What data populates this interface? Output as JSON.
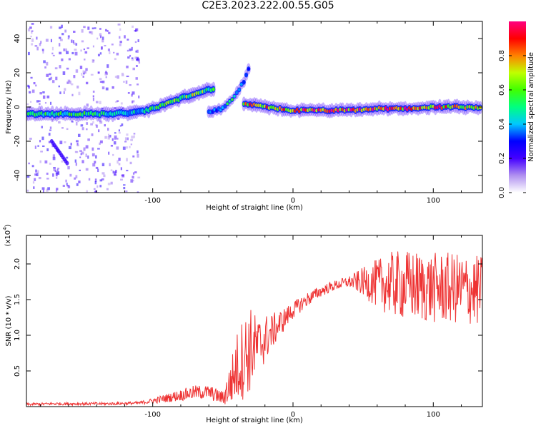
{
  "page_title": "C2E3.2023.222.00.55.G05",
  "chart_data": [
    {
      "type": "heatmap",
      "name": "spectrogram",
      "xlabel": "Height of straight line (km)",
      "ylabel": "Frequency (Hz)",
      "xlim": [
        -190,
        135
      ],
      "ylim": [
        -50,
        50
      ],
      "xticks": [
        -100,
        0,
        100
      ],
      "xtick_labels": [
        "-100",
        "0",
        "100"
      ],
      "yticks": [
        -40,
        -20,
        0,
        20,
        40
      ],
      "ytick_labels": [
        "-40",
        "-20",
        "0",
        "20",
        "40"
      ],
      "colorbar": {
        "label": "Normalized spectral amplitude",
        "range": [
          0,
          1
        ],
        "ticks": [
          0.0,
          0.2,
          0.4,
          0.6,
          0.8
        ],
        "tick_labels": [
          "0.0",
          "0.2",
          "0.4",
          "0.6",
          "0.8"
        ],
        "colormap": [
          "#ffffff",
          "#b090f0",
          "#4400ff",
          "#0000ff",
          "#00c8ff",
          "#00ff80",
          "#40ff00",
          "#c0ff00",
          "#ff8000",
          "#ff0000",
          "#ff0080"
        ]
      },
      "main_trace": [
        {
          "x": -190,
          "y": -4,
          "amp": 0.45
        },
        {
          "x": -170,
          "y": -4,
          "amp": 0.5
        },
        {
          "x": -150,
          "y": -4,
          "amp": 0.5
        },
        {
          "x": -130,
          "y": -4,
          "amp": 0.45
        },
        {
          "x": -110,
          "y": -3,
          "amp": 0.45
        },
        {
          "x": -100,
          "y": -1,
          "amp": 0.5
        },
        {
          "x": -90,
          "y": 2,
          "amp": 0.55
        },
        {
          "x": -80,
          "y": 5,
          "amp": 0.6
        },
        {
          "x": -70,
          "y": 8,
          "amp": 0.6
        },
        {
          "x": -60,
          "y": 10,
          "amp": 0.55
        },
        {
          "x": -55,
          "y": 11,
          "amp": 0.5
        }
      ],
      "branch_trace": [
        {
          "x": -60,
          "y": -3,
          "amp": 0.3
        },
        {
          "x": -50,
          "y": -1,
          "amp": 0.4
        },
        {
          "x": -45,
          "y": 3,
          "amp": 0.5
        },
        {
          "x": -40,
          "y": 8,
          "amp": 0.4
        },
        {
          "x": -35,
          "y": 15,
          "amp": 0.3
        },
        {
          "x": -30,
          "y": 25,
          "amp": 0.2
        }
      ],
      "steady_trace": [
        {
          "x": -35,
          "y": 2,
          "amp": 0.7
        },
        {
          "x": -20,
          "y": 0,
          "amp": 0.75
        },
        {
          "x": 0,
          "y": -2,
          "amp": 0.8
        },
        {
          "x": 20,
          "y": -2,
          "amp": 0.9
        },
        {
          "x": 40,
          "y": -2,
          "amp": 0.85
        },
        {
          "x": 60,
          "y": -1,
          "amp": 0.85
        },
        {
          "x": 80,
          "y": -1,
          "amp": 0.8
        },
        {
          "x": 100,
          "y": 0,
          "amp": 0.8
        },
        {
          "x": 120,
          "y": 0,
          "amp": 0.75
        },
        {
          "x": 135,
          "y": -1,
          "amp": 0.7
        }
      ],
      "faint_branch": [
        {
          "x": -172,
          "y": -20
        },
        {
          "x": -166,
          "y": -27
        },
        {
          "x": -160,
          "y": -34
        }
      ],
      "noise_region_x": [
        -190,
        -110
      ]
    },
    {
      "type": "line",
      "name": "snr",
      "xlabel": "Height of straight line (km)",
      "ylabel": "SNR (10 * v/v)",
      "multiplier_label": "(x10",
      "multiplier_exp": "4",
      "multiplier_close": ")",
      "xlim": [
        -190,
        135
      ],
      "ylim": [
        0,
        2.4
      ],
      "xticks": [
        -100,
        0,
        100
      ],
      "xtick_labels": [
        "-100",
        "0",
        "100"
      ],
      "yticks": [
        0.5,
        1.0,
        1.5,
        2.0
      ],
      "ytick_labels": [
        "0.5",
        "1.0",
        "1.5",
        "2.0"
      ],
      "color": "#ee3333",
      "series": [
        {
          "x": [
            -190,
            -170,
            -150,
            -130,
            -110,
            -100,
            -90,
            -80,
            -70,
            -60,
            -50,
            -45,
            -40,
            -35,
            -30,
            -25,
            -20,
            -15,
            -10,
            -5,
            0,
            10,
            20,
            30,
            40,
            50,
            60,
            70,
            80,
            90,
            100,
            110,
            120,
            130,
            135
          ],
          "values": [
            0.03,
            0.04,
            0.04,
            0.04,
            0.05,
            0.08,
            0.12,
            0.16,
            0.2,
            0.2,
            0.12,
            0.3,
            0.55,
            0.7,
            0.8,
            0.85,
            0.95,
            1.05,
            1.15,
            1.25,
            1.35,
            1.5,
            1.62,
            1.7,
            1.75,
            1.75,
            1.72,
            1.72,
            1.7,
            1.68,
            1.66,
            1.66,
            1.65,
            1.63,
            1.62
          ],
          "spread": [
            0.02,
            0.02,
            0.02,
            0.02,
            0.02,
            0.04,
            0.06,
            0.08,
            0.1,
            0.1,
            0.1,
            0.3,
            0.5,
            0.6,
            0.6,
            0.4,
            0.35,
            0.25,
            0.2,
            0.15,
            0.12,
            0.1,
            0.08,
            0.07,
            0.08,
            0.2,
            0.35,
            0.45,
            0.5,
            0.5,
            0.5,
            0.5,
            0.5,
            0.5,
            0.5
          ]
        }
      ]
    }
  ]
}
